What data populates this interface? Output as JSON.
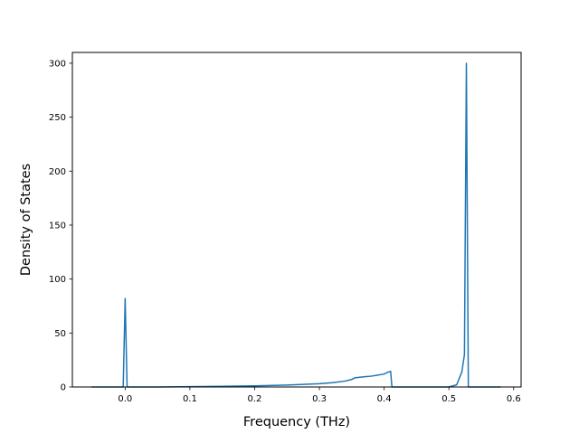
{
  "chart_data": {
    "type": "line",
    "title": "",
    "xlabel": "Frequency (THz)",
    "ylabel": "Density of States",
    "xlim": [
      -0.0815,
      0.6115
    ],
    "ylim": [
      0,
      310
    ],
    "xticks": [
      0.0,
      0.1,
      0.2,
      0.3,
      0.4,
      0.5,
      0.6
    ],
    "xtick_labels": [
      "0.0",
      "0.1",
      "0.2",
      "0.3",
      "0.4",
      "0.5",
      "0.6"
    ],
    "yticks": [
      0,
      50,
      100,
      150,
      200,
      250,
      300
    ],
    "ytick_labels": [
      "0",
      "50",
      "100",
      "150",
      "200",
      "250",
      "300"
    ],
    "grid": false,
    "legend": "none",
    "series": [
      {
        "color": "#1f77b4",
        "x": [
          -0.052,
          -0.003,
          0.0,
          0.003,
          0.05,
          0.1,
          0.15,
          0.2,
          0.25,
          0.3,
          0.32,
          0.34,
          0.35,
          0.355,
          0.37,
          0.38,
          0.39,
          0.4,
          0.405,
          0.41,
          0.412,
          0.5,
          0.512,
          0.52,
          0.524,
          0.527,
          0.53,
          0.58
        ],
        "y": [
          0,
          0,
          82,
          0,
          0,
          0.3,
          0.6,
          1.0,
          1.8,
          3.0,
          4.0,
          5.5,
          7.0,
          8.5,
          9.5,
          10.0,
          11.0,
          12.0,
          13.5,
          14.5,
          0,
          0,
          2,
          14,
          30,
          300,
          0,
          0
        ]
      }
    ]
  }
}
